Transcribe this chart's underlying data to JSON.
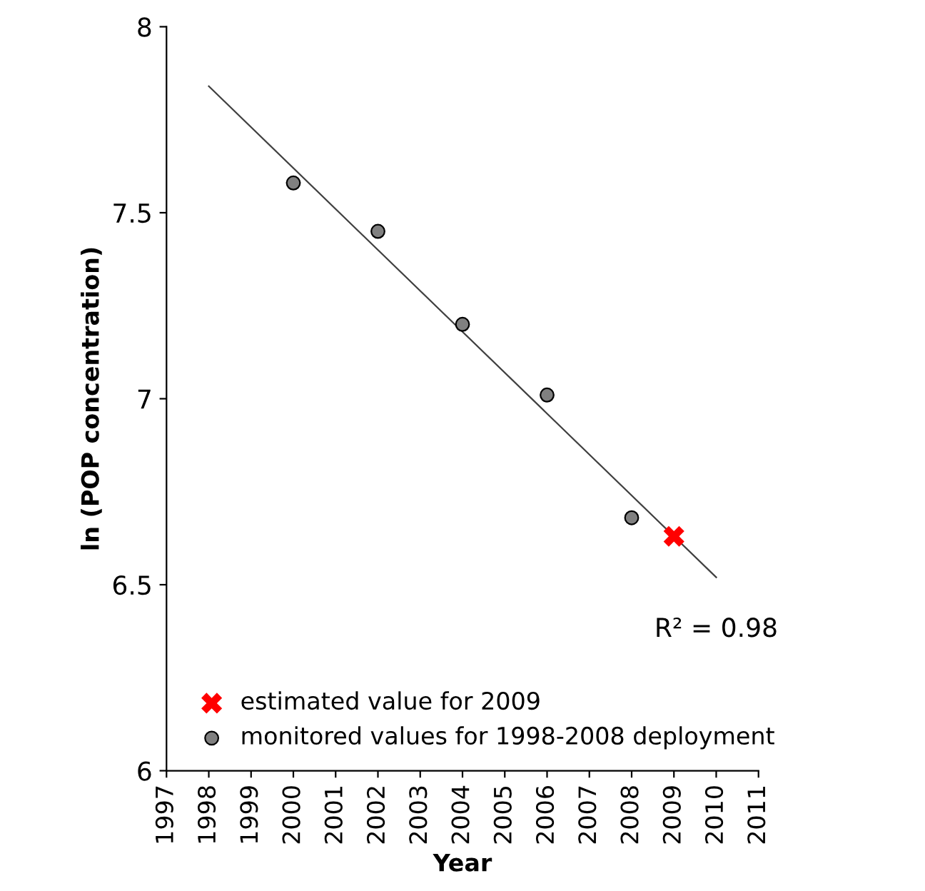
{
  "chart_data": {
    "type": "scatter",
    "xlabel": "Year",
    "ylabel": "ln (POP concentration)",
    "xlim": [
      1997,
      2011
    ],
    "xticks": [
      1997,
      1998,
      1999,
      2000,
      2001,
      2002,
      2003,
      2004,
      2005,
      2006,
      2007,
      2008,
      2009,
      2010,
      2011
    ],
    "ylim": [
      6,
      8
    ],
    "yticks": [
      6,
      6.5,
      7,
      7.5,
      8
    ],
    "grid": false,
    "legend": "bottom left",
    "annotations": [
      {
        "text": "R² = 0.98",
        "x": 2010,
        "y": 6.52
      }
    ],
    "series": [
      {
        "name": "estimated value for 2009",
        "marker": "cross",
        "color": "#ff0000",
        "x": [
          2009
        ],
        "values": [
          6.63
        ]
      },
      {
        "name": "monitored values for 1998-2008 deployment",
        "marker": "circle",
        "color": "#808080",
        "x": [
          2000,
          2002,
          2004,
          2006,
          2008
        ],
        "values": [
          7.58,
          7.45,
          7.2,
          7.01,
          6.68
        ]
      },
      {
        "type": "line",
        "marker": "none",
        "color": "#404040",
        "x": [
          1998,
          2010
        ],
        "values": [
          7.84,
          6.52
        ]
      }
    ]
  }
}
